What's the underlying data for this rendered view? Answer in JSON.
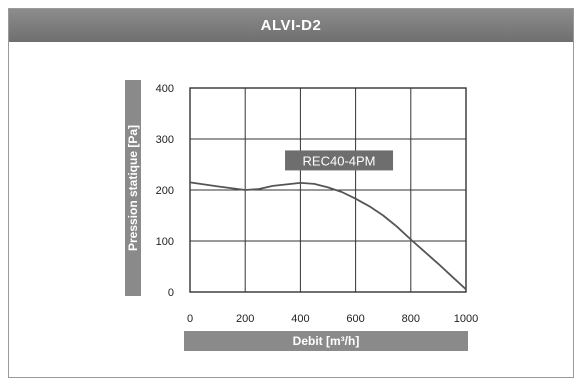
{
  "window": {
    "title": "ALVI-D2"
  },
  "colors": {
    "title_bar": "#7b7b7b",
    "label_band": "#8a8a8a",
    "curve": "#555555",
    "grid": "#333333",
    "annotation_bg": "#6e6e6e"
  },
  "chart_data": {
    "type": "line",
    "title": "ALVI-D2",
    "xlabel": "Debit [m³/h]",
    "ylabel": "Pression statique [Pa]",
    "xlim": [
      0,
      1000
    ],
    "ylim": [
      0,
      400
    ],
    "x_ticks": [
      0,
      200,
      400,
      600,
      800,
      1000
    ],
    "y_ticks": [
      0,
      100,
      200,
      300,
      400
    ],
    "x_tick_labels": [
      "0",
      "200",
      "400",
      "600",
      "800",
      "1000"
    ],
    "y_tick_labels": [
      "0",
      "100",
      "200",
      "300",
      "400"
    ],
    "grid": true,
    "series": [
      {
        "name": "REC40-4PM",
        "x": [
          0,
          100,
          200,
          250,
          300,
          400,
          450,
          500,
          550,
          600,
          650,
          700,
          750,
          800,
          850,
          900,
          950,
          1000
        ],
        "y": [
          215,
          207,
          200,
          202,
          208,
          214,
          212,
          205,
          196,
          183,
          168,
          150,
          128,
          103,
          79,
          55,
          30,
          5
        ]
      }
    ],
    "annotations": [
      {
        "text": "REC40-4PM",
        "x": 540,
        "y": 258
      }
    ]
  }
}
